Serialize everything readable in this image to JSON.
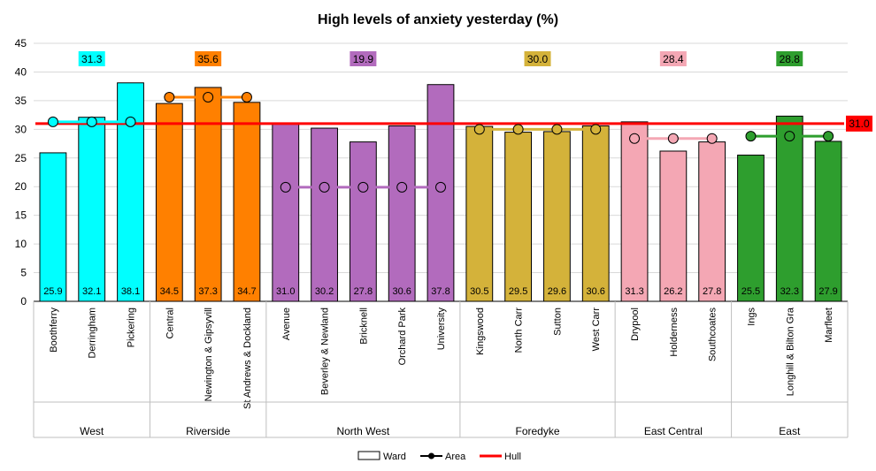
{
  "chart_data": {
    "type": "bar",
    "title": "High levels of anxiety yesterday (%)",
    "ylim": [
      0,
      45
    ],
    "yticks": [
      0,
      5,
      10,
      15,
      20,
      25,
      30,
      35,
      40,
      45
    ],
    "grid": "horizontal",
    "legend_position": "bottom",
    "groups": [
      {
        "name": "West",
        "color": "#00FFFF",
        "area_value": 31.3,
        "area_label": "31.3",
        "wards": [
          {
            "name": "Boothferry",
            "value": 25.9
          },
          {
            "name": "Derringham",
            "value": 32.1
          },
          {
            "name": "Pickering",
            "value": 38.1
          }
        ]
      },
      {
        "name": "Riverside",
        "color": "#FF8000",
        "area_value": 35.6,
        "area_label": "35.6",
        "wards": [
          {
            "name": "Central",
            "value": 34.5
          },
          {
            "name": "Newington & Gipsyvill",
            "value": 37.3
          },
          {
            "name": "St Andrews & Dockland",
            "value": 34.7
          }
        ]
      },
      {
        "name": "North West",
        "color": "#B26BBD",
        "area_value": 19.9,
        "area_label": "19.9",
        "wards": [
          {
            "name": "Avenue",
            "value": 31.0
          },
          {
            "name": "Beverley & Newland",
            "value": 30.2
          },
          {
            "name": "Bricknell",
            "value": 27.8
          },
          {
            "name": "Orchard Park",
            "value": 30.6
          },
          {
            "name": "University",
            "value": 37.8
          }
        ]
      },
      {
        "name": "Foredyke",
        "color": "#D4B23A",
        "area_value": 30.0,
        "area_label": "30.0",
        "wards": [
          {
            "name": "Kingswood",
            "value": 30.5
          },
          {
            "name": "North Carr",
            "value": 29.5
          },
          {
            "name": "Sutton",
            "value": 29.6
          },
          {
            "name": "West Carr",
            "value": 30.6
          }
        ]
      },
      {
        "name": "East Central",
        "color": "#F4A7B4",
        "area_value": 28.4,
        "area_label": "28.4",
        "wards": [
          {
            "name": "Drypool",
            "value": 31.3
          },
          {
            "name": "Holderness",
            "value": 26.2
          },
          {
            "name": "Southcoates",
            "value": 27.8
          }
        ]
      },
      {
        "name": "East",
        "color": "#2E9E2E",
        "area_value": 28.8,
        "area_label": "28.8",
        "wards": [
          {
            "name": "Ings",
            "value": 25.5
          },
          {
            "name": "Longhill & Bilton Gra",
            "value": 32.3
          },
          {
            "name": "Marfleet",
            "value": 27.9
          }
        ]
      }
    ],
    "hull_value": 31.0,
    "hull_label": "31.0",
    "hull_color": "#FF0000",
    "series": [
      {
        "name": "Ward"
      },
      {
        "name": "Area"
      },
      {
        "name": "Hull"
      }
    ]
  }
}
